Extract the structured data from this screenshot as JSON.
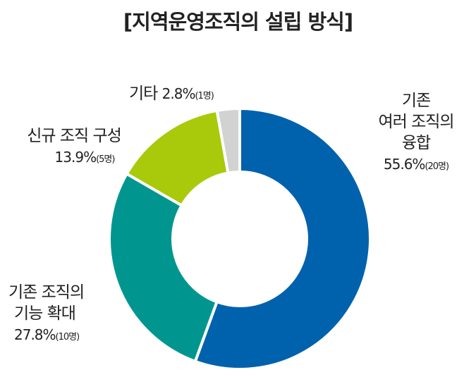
{
  "chart_data": {
    "type": "pie",
    "variant": "donut",
    "title": "[지역운영조직의 설립 방식]",
    "start": "top-clockwise",
    "slices": [
      {
        "label": "기존 여러 조직의 융합",
        "label_lines": [
          "기존",
          "여러 조직의",
          "융합"
        ],
        "value": 55.6,
        "pct_text": "55.6%",
        "count": "(20명)",
        "color": "#0061ad"
      },
      {
        "label": "기존 조직의 기능 확대",
        "label_lines": [
          "기존 조직의",
          "기능 확대"
        ],
        "value": 27.8,
        "pct_text": "27.8%",
        "count": "(10명)",
        "color": "#00968f"
      },
      {
        "label": "신규 조직 구성",
        "label_lines": [
          "신규 조직 구성"
        ],
        "value": 13.9,
        "pct_text": "13.9%",
        "count": "(5명)",
        "color": "#a9c90b"
      },
      {
        "label": "기타",
        "label_lines": [
          "기타"
        ],
        "value": 2.8,
        "pct_text": "2.8%",
        "count": "(1명)",
        "color": "#d2d2d2"
      }
    ]
  }
}
